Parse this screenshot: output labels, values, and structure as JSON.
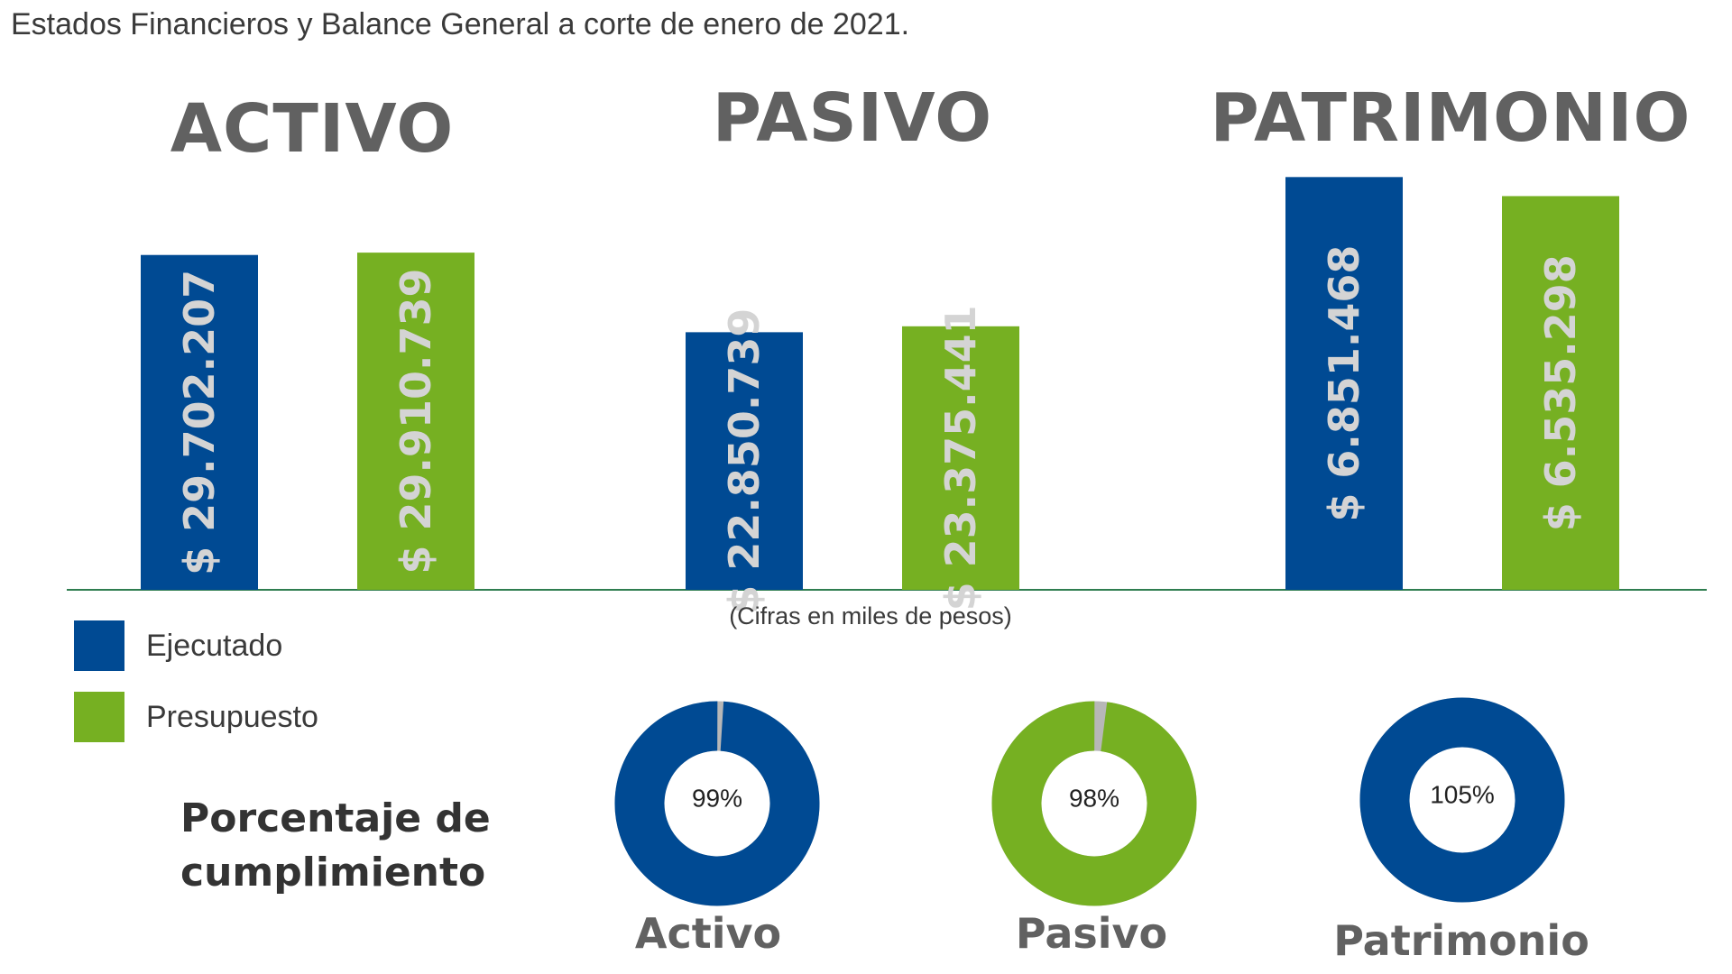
{
  "title": "Estados Financieros y Balance General a corte de enero de 2021.",
  "units_note": "(Cifras en miles de pesos)",
  "legend": [
    {
      "label": "Ejecutado",
      "color": "#004a93"
    },
    {
      "label": "Presupuesto",
      "color": "#76b022"
    }
  ],
  "colors": {
    "ejecutado": "#004a93",
    "presupuesto": "#76b022",
    "remainder": "#b7b7b7",
    "baseline": "#2e7d4f",
    "bar_text": "#d4d4d4"
  },
  "chart_data": [
    {
      "type": "bar",
      "title": "",
      "categories": [
        "ACTIVO",
        "PASIVO",
        "PATRIMONIO"
      ],
      "series": [
        {
          "name": "Ejecutado",
          "values": [
            29702207,
            22850739,
            6851468
          ],
          "labels": [
            "$ 29.702.207",
            "$ 22.850.739",
            "$ 6.851.468"
          ]
        },
        {
          "name": "Presupuesto",
          "values": [
            29910739,
            23375441,
            6535298
          ],
          "labels": [
            "$ 29.910.739",
            "$ 23.375.441",
            "$ 6.535.298"
          ]
        }
      ],
      "xlabel": "",
      "ylabel": "",
      "grid": false,
      "legend_position": "bottom-left"
    },
    {
      "type": "pie",
      "variant": "donut",
      "title": "Porcentaje de cumplimiento",
      "items": [
        {
          "category": "Activo",
          "percent": 99,
          "label": "99%",
          "color": "#004a93"
        },
        {
          "category": "Pasivo",
          "percent": 98,
          "label": "98%",
          "color": "#76b022"
        },
        {
          "category": "Patrimonio",
          "percent": 105,
          "label": "105%",
          "color": "#004a93"
        }
      ]
    }
  ]
}
